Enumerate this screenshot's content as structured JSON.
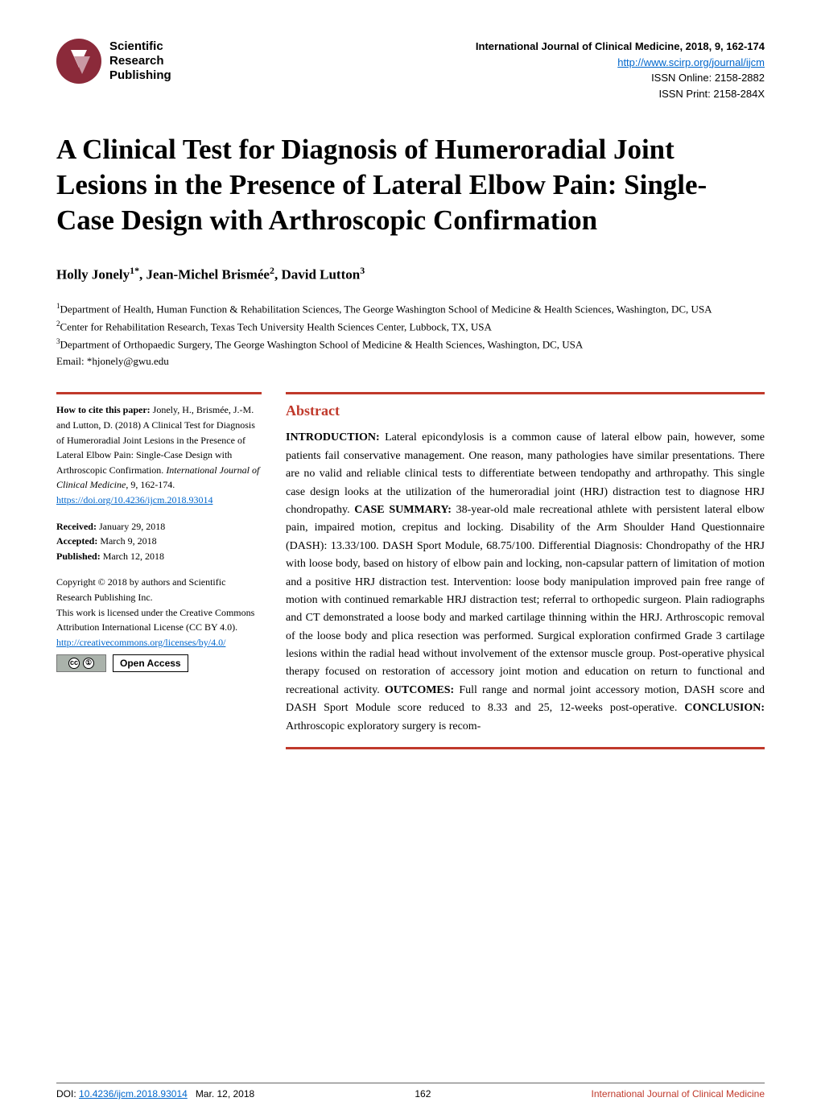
{
  "header": {
    "logo_line1": "Scientific",
    "logo_line2": "Research",
    "logo_line3": "Publishing",
    "journal_title": "International Journal of Clinical Medicine, 2018, 9, 162-174",
    "journal_url": "http://www.scirp.org/journal/ijcm",
    "issn_online": "ISSN Online: 2158-2882",
    "issn_print": "ISSN Print: 2158-284X"
  },
  "article": {
    "title": "A Clinical Test for Diagnosis of Humeroradial Joint Lesions in the Presence of Lateral Elbow Pain: Single-Case Design with Arthroscopic Confirmation",
    "authors_html": "Holly Jonely<sup>1*</sup>, Jean-Michel Brismée<sup>2</sup>, David Lutton<sup>3</sup>",
    "aff1": "1Department of Health, Human Function & Rehabilitation Sciences, The George Washington School of Medicine & Health Sciences, Washington, DC, USA",
    "aff2": "2Center for Rehabilitation Research, Texas Tech University Health Sciences Center, Lubbock, TX, USA",
    "aff3": "3Department of Orthopaedic Surgery, The George Washington School of Medicine & Health Sciences, Washington, DC, USA",
    "email": "Email: *hjonely@gwu.edu"
  },
  "sidebar": {
    "cite_label": "How to cite this paper:",
    "cite_text": " Jonely, H., Brismée, J.-M. and Lutton, D. (2018) A Clinical Test for Diagnosis of Humeroradial Joint Lesions in the Presence of Lateral Elbow Pain: Single-Case Design with Arthroscopic Confirmation. ",
    "cite_journal": "International Journal of Clinical Medicine",
    "cite_vol": ", 9, 162-174.",
    "doi_link": "https://doi.org/10.4236/ijcm.2018.93014",
    "received_label": "Received:",
    "received": " January 29, 2018",
    "accepted_label": "Accepted:",
    "accepted": " March 9, 2018",
    "published_label": "Published:",
    "published": " March 12, 2018",
    "copyright": "Copyright © 2018 by authors and Scientific Research Publishing Inc.",
    "license1": "This work is licensed under the Creative Commons Attribution International License (CC BY 4.0).",
    "license_link": "http://creativecommons.org/licenses/by/4.0/",
    "open_access": "Open Access"
  },
  "abstract": {
    "heading": "Abstract",
    "intro_label": "INTRODUCTION:",
    "intro": " Lateral epicondylosis is a common cause of lateral elbow pain, however, some patients fail conservative management. One reason, many pathologies have similar presentations. There are no valid and reliable clinical tests to differentiate between tendopathy and arthropathy. This single case design looks at the utilization of the humeroradial joint (HRJ) distraction test to diagnose HRJ chondropathy. ",
    "case_label": "CASE SUMMARY:",
    "case": " 38-year-old male recreational athlete with persistent lateral elbow pain, impaired motion, crepitus and locking. Disability of the Arm Shoulder Hand Questionnaire (DASH): 13.33/100. DASH Sport Module, 68.75/100. Differential Diagnosis: Chondropathy of the HRJ with loose body, based on history of elbow pain and locking, non-capsular pattern of limitation of motion and a positive HRJ distraction test. Intervention: loose body manipulation improved pain free range of motion with continued remarkable HRJ distraction test; referral to orthopedic surgeon. Plain radiographs and CT demonstrated a loose body and marked cartilage thinning within the HRJ. Arthroscopic removal of the loose body and plica resection was performed. Surgical exploration confirmed Grade 3 cartilage lesions within the radial head without involvement of the extensor muscle group. Post-operative physical therapy focused on restoration of accessory joint motion and education on return to functional and recreational activity. ",
    "outcomes_label": "OUTCOMES:",
    "outcomes": " Full range and normal joint accessory motion, DASH score and DASH Sport Module score reduced to 8.33 and 25, 12-weeks post-operative. ",
    "conclusion_label": "CONCLUSION:",
    "conclusion": " Arthroscopic exploratory surgery is recom-"
  },
  "footer": {
    "doi_label": "DOI: ",
    "doi": "10.4236/ijcm.2018.93014",
    "date": "Mar. 12, 2018",
    "page": "162",
    "journal": "International Journal of Clinical Medicine"
  },
  "colors": {
    "accent": "#c0392b",
    "link": "#0066cc",
    "logo_bg": "#8b2a3a"
  }
}
